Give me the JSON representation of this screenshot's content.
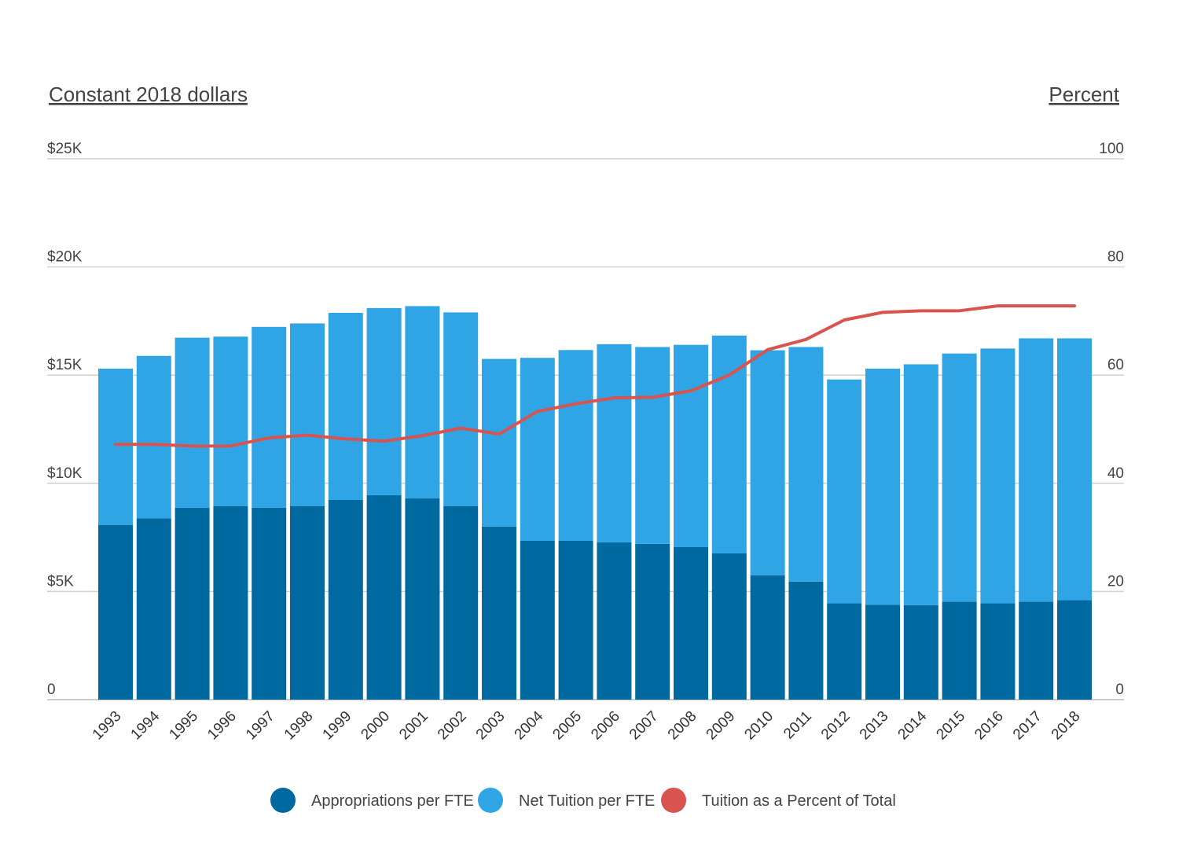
{
  "chart_data": {
    "type": "bar",
    "stacked": true,
    "left_axis_title": "Constant 2018 dollars",
    "right_axis_title": "Percent",
    "y_left": {
      "min": 0,
      "max": 25000,
      "ticks": [
        0,
        5000,
        10000,
        15000,
        20000,
        25000
      ],
      "tick_labels": [
        "0",
        "$5K",
        "$10K",
        "$15K",
        "$20K",
        "$25K"
      ]
    },
    "y_right": {
      "min": 0,
      "max": 100,
      "ticks": [
        0,
        20,
        40,
        60,
        80,
        100
      ],
      "tick_labels": [
        "0",
        "20",
        "40",
        "60",
        "80",
        "100"
      ]
    },
    "categories": [
      "1993",
      "1994",
      "1995",
      "1996",
      "1997",
      "1998",
      "1999",
      "2000",
      "2001",
      "2002",
      "2003",
      "2004",
      "2005",
      "2006",
      "2007",
      "2008",
      "2009",
      "2010",
      "2011",
      "2012",
      "2013",
      "2014",
      "2015",
      "2016",
      "2017",
      "2018"
    ],
    "series": [
      {
        "name": "Appropriations per FTE",
        "type": "bar",
        "color": "#00699f",
        "values": [
          8080,
          8380,
          8870,
          8950,
          8870,
          8950,
          9230,
          9450,
          9300,
          8950,
          8000,
          7340,
          7340,
          7270,
          7200,
          7050,
          6760,
          5750,
          5460,
          4450,
          4380,
          4370,
          4530,
          4450,
          4530,
          4600
        ]
      },
      {
        "name": "Net Tuition per FTE",
        "type": "bar",
        "color": "#2fa5e6",
        "values": [
          7220,
          7510,
          7860,
          7830,
          8360,
          8440,
          8650,
          8650,
          8890,
          8950,
          7750,
          8460,
          8820,
          9160,
          9100,
          9350,
          10070,
          10400,
          10840,
          10350,
          10920,
          11130,
          11470,
          11780,
          12170,
          12100
        ]
      },
      {
        "name": "Tuition as a Percent of Total",
        "type": "line",
        "axis": "right",
        "color": "#d9534f",
        "values": [
          47.2,
          47.2,
          46.9,
          46.9,
          48.4,
          48.9,
          48.2,
          47.8,
          48.8,
          50.2,
          49.1,
          53.3,
          54.7,
          55.8,
          55.9,
          57.1,
          60.0,
          64.7,
          66.6,
          70.2,
          71.6,
          71.9,
          71.9,
          72.8,
          72.8,
          72.8
        ]
      }
    ],
    "legend": "bottom-center",
    "grid": true
  }
}
